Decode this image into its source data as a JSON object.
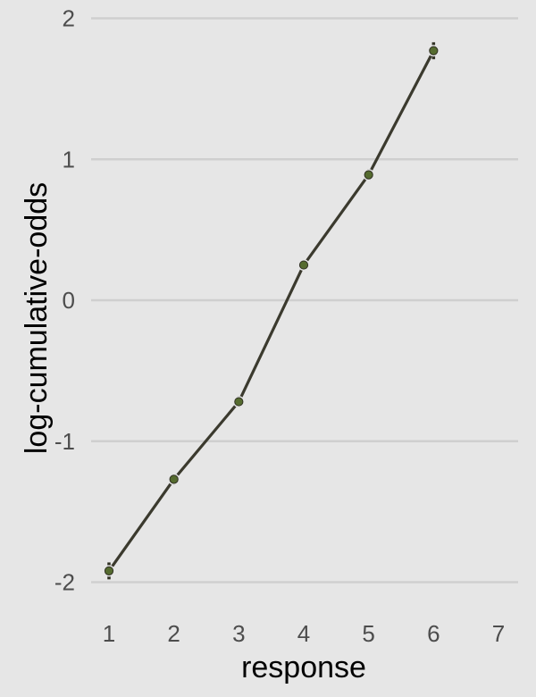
{
  "chart_data": {
    "type": "line",
    "xlabel": "response",
    "ylabel": "log-cumulative-odds",
    "x_ticks": [
      1,
      2,
      3,
      4,
      5,
      6,
      7
    ],
    "y_ticks": [
      -2,
      -1,
      0,
      1,
      2
    ],
    "xlim": [
      0.7,
      7.3
    ],
    "ylim": [
      -2.15,
      2.1
    ],
    "grid": "horizontal",
    "series": [
      {
        "x": [
          1,
          2,
          3,
          4,
          5,
          6
        ],
        "y": [
          -1.92,
          -1.27,
          -0.72,
          0.25,
          0.89,
          1.77
        ],
        "error": [
          0.06,
          0.04,
          0.04,
          0.03,
          0.04,
          0.06
        ]
      }
    ],
    "colors": {
      "background": "#e6e6e6",
      "grid": "#cfcfcf",
      "line": "#3b3a2e",
      "point": "#556b2f",
      "errorbar": "#2f2f22"
    }
  }
}
